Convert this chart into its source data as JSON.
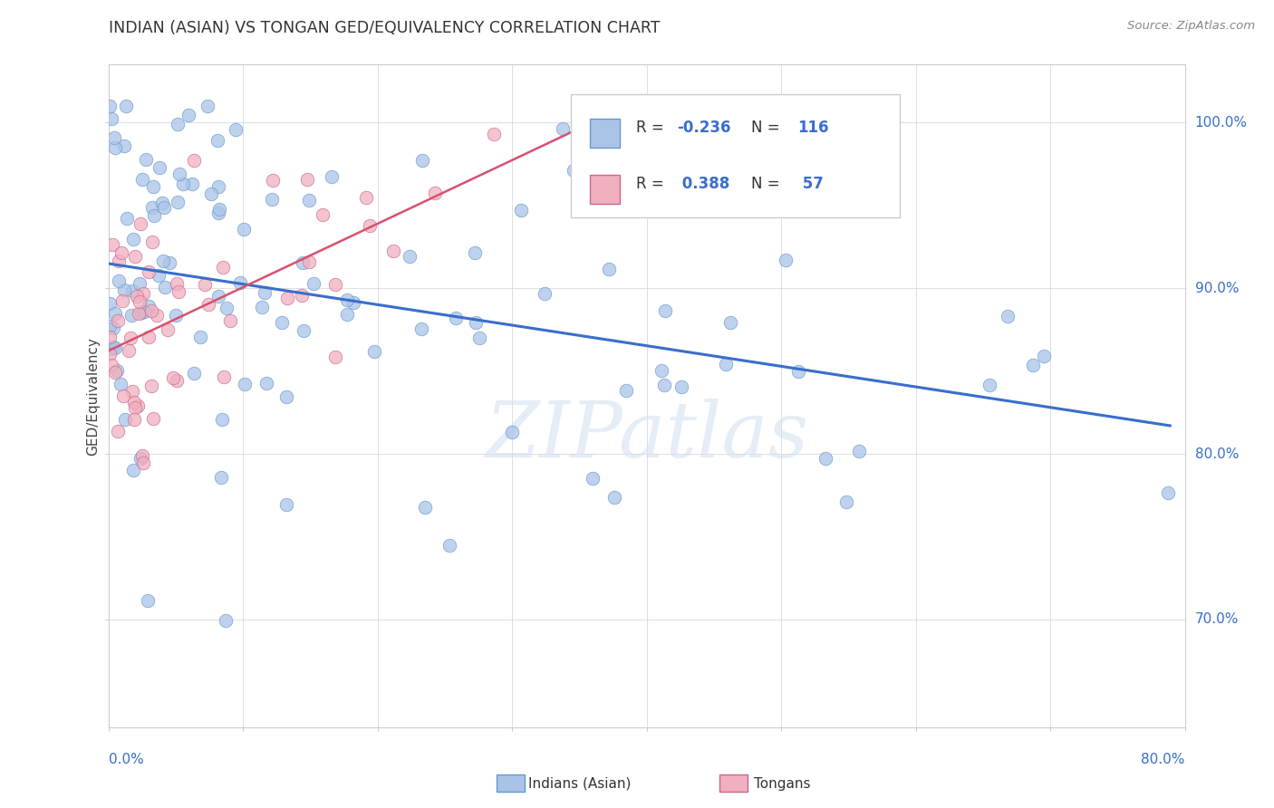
{
  "title": "INDIAN (ASIAN) VS TONGAN GED/EQUIVALENCY CORRELATION CHART",
  "source": "Source: ZipAtlas.com",
  "ylabel": "GED/Equivalency",
  "xlim": [
    0.0,
    0.8
  ],
  "ylim": [
    0.635,
    1.035
  ],
  "watermark": "ZIPatlas",
  "indian_color": "#aac4e8",
  "tongan_color": "#f0b0c0",
  "indian_line_color": "#3a6ecc",
  "tongan_line_color": "#d85070",
  "indian_edge_color": "#6699cc",
  "tongan_edge_color": "#cc6688",
  "r_indian": -0.236,
  "n_indian": 116,
  "r_tongan": 0.388,
  "n_tongan": 57,
  "seed": 99,
  "grid_color": "#d8d8d8",
  "right_label_color": "#3a6ecc",
  "ytick_vals": [
    0.7,
    0.8,
    0.9,
    1.0
  ],
  "ytick_labels": [
    "70.0%",
    "80.0%",
    "90.0%",
    "100.0%"
  ],
  "xtick_vals": [
    0.0,
    0.1,
    0.2,
    0.3,
    0.4,
    0.5,
    0.6,
    0.7,
    0.8
  ],
  "marker_size": 110,
  "legend_blue_label": "R = -0.236   N = 116",
  "legend_pink_label": "R =  0.388   N =  57"
}
